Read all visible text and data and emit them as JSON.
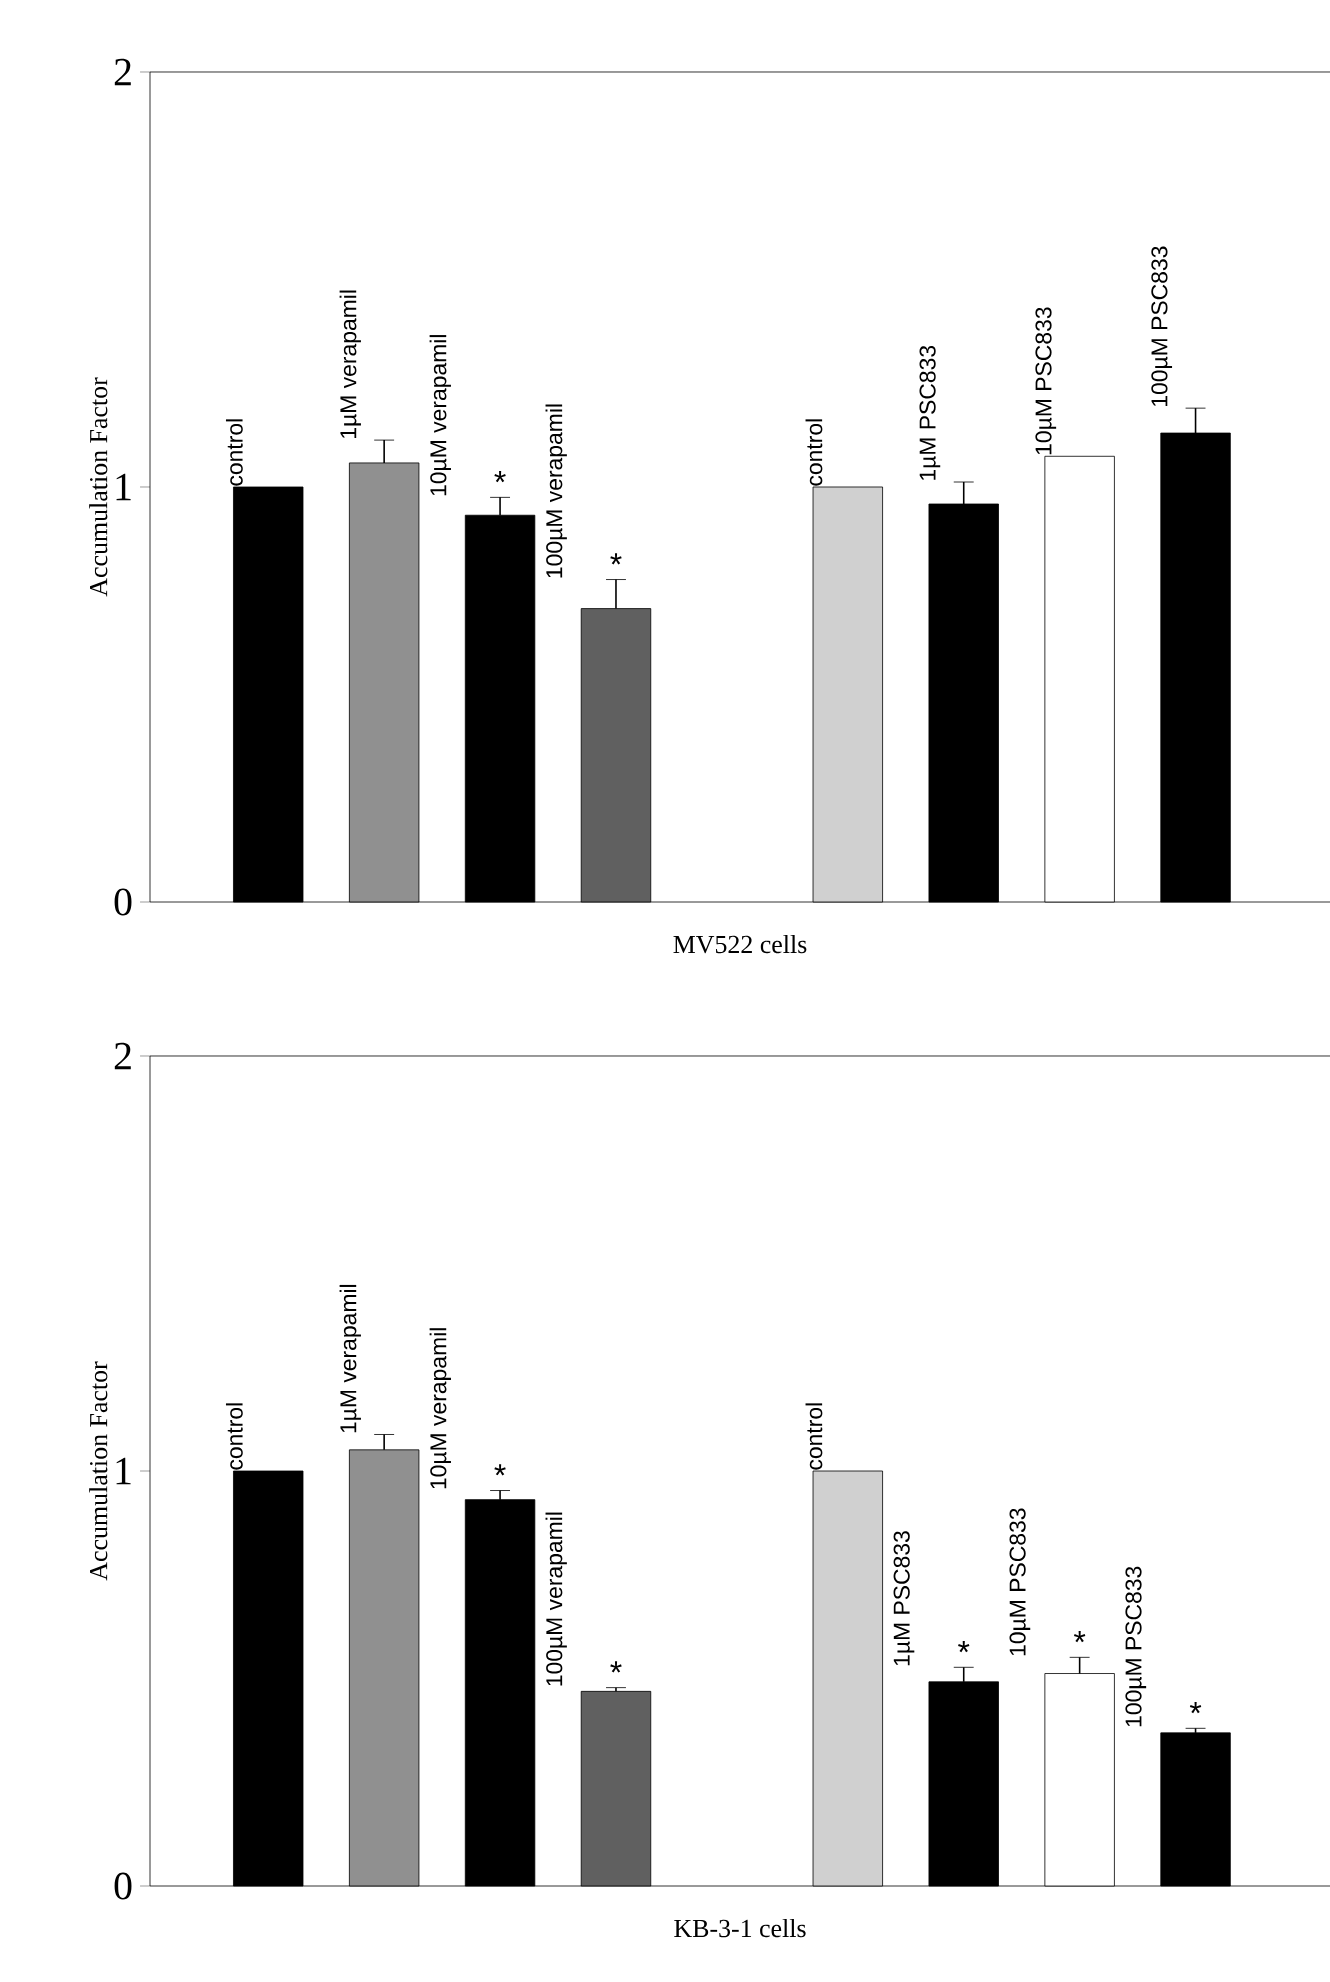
{
  "chart_data": [
    {
      "type": "bar",
      "xlabel": "MV522 cells",
      "ylabel": "Accumulation Factor",
      "categories": [
        "control",
        "1µM verapamil",
        "10µM verapamil",
        "100µM verapamil",
        null,
        "control",
        "1µM PSC833",
        "10µM PSC833",
        "100µM PSC833"
      ],
      "values": [
        1.0,
        1.058,
        0.932,
        0.707,
        null,
        1.0,
        0.959,
        1.074,
        1.13
      ],
      "errors": [
        null,
        0.055,
        0.043,
        0.07,
        null,
        null,
        0.053,
        null,
        0.06
      ],
      "value_labels": [
        null,
        null,
        "*",
        "*",
        null,
        null,
        null,
        null,
        null
      ],
      "colors": [
        "#000000",
        "#909090",
        "#000000",
        "#606060",
        "#000000",
        "#d0d0d0",
        "#000000",
        "#ffffff",
        "#000000"
      ],
      "ylim": [
        0,
        2
      ],
      "yticks": [
        0,
        1,
        2
      ]
    },
    {
      "type": "bar",
      "xlabel": "KB-3-1 cells",
      "ylabel": "Accumulation Factor",
      "categories": [
        "control",
        "1µM verapamil",
        "10µM verapamil",
        "100µM verapamil",
        null,
        "control",
        "1µM PSC833",
        "10µM PSC833",
        "100µM PSC833"
      ],
      "values": [
        1.0,
        1.051,
        0.931,
        0.469,
        null,
        1.0,
        0.492,
        0.512,
        0.369
      ],
      "errors": [
        null,
        0.037,
        0.022,
        0.009,
        null,
        null,
        0.035,
        0.039,
        0.011
      ],
      "value_labels": [
        null,
        null,
        "*",
        "*",
        null,
        null,
        "*",
        "*",
        "*"
      ],
      "colors": [
        "#000000",
        "#909090",
        "#000000",
        "#606060",
        "#000000",
        "#d0d0d0",
        "#000000",
        "#ffffff",
        "#000000"
      ],
      "ylim": [
        0,
        2
      ],
      "yticks": [
        0,
        1,
        2
      ]
    }
  ]
}
